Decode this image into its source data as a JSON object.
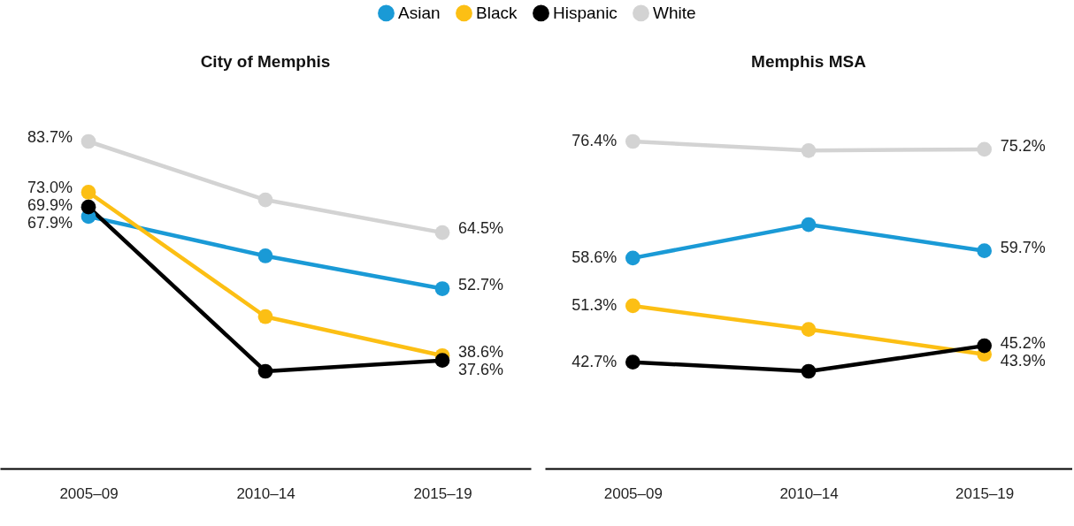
{
  "chart_data": [
    {
      "type": "line",
      "title": "City of Memphis",
      "categories": [
        "2005–09",
        "2010–14",
        "2015–19"
      ],
      "tick_labels": "x",
      "legend": "top",
      "marker": "circle",
      "line_style": "solid",
      "series": [
        {
          "name": "Asian",
          "color": "#1a9ad6",
          "values": [
            67.9,
            59.6,
            52.7
          ],
          "value_labels": [
            "67.9%",
            null,
            "52.7%"
          ]
        },
        {
          "name": "Black",
          "color": "#fcbf14",
          "values": [
            73.0,
            46.8,
            38.6
          ],
          "value_labels": [
            "73.0%",
            null,
            "38.6%"
          ]
        },
        {
          "name": "Hispanic",
          "color": "#000000",
          "values": [
            69.9,
            35.3,
            37.6
          ],
          "value_labels": [
            "69.9%",
            null,
            "37.6%"
          ]
        },
        {
          "name": "White",
          "color": "#d3d3d3",
          "values": [
            83.7,
            71.4,
            64.5
          ],
          "value_labels": [
            "83.7%",
            null,
            "64.5%"
          ]
        }
      ]
    },
    {
      "type": "line",
      "title": "Memphis MSA",
      "categories": [
        "2005–09",
        "2010–14",
        "2015–19"
      ],
      "tick_labels": "x",
      "legend": "top",
      "marker": "circle",
      "line_style": "solid",
      "series": [
        {
          "name": "Asian",
          "color": "#1a9ad6",
          "values": [
            58.6,
            63.7,
            59.7
          ],
          "value_labels": [
            "58.6%",
            null,
            "59.7%"
          ]
        },
        {
          "name": "Black",
          "color": "#fcbf14",
          "values": [
            51.3,
            47.7,
            43.9
          ],
          "value_labels": [
            "51.3%",
            null,
            "43.9%"
          ]
        },
        {
          "name": "Hispanic",
          "color": "#000000",
          "values": [
            42.7,
            41.3,
            45.2
          ],
          "value_labels": [
            "42.7%",
            null,
            "45.2%"
          ]
        },
        {
          "name": "White",
          "color": "#d3d3d3",
          "values": [
            76.4,
            75.0,
            75.2
          ],
          "value_labels": [
            "76.4%",
            null,
            "75.2%"
          ]
        }
      ]
    }
  ]
}
